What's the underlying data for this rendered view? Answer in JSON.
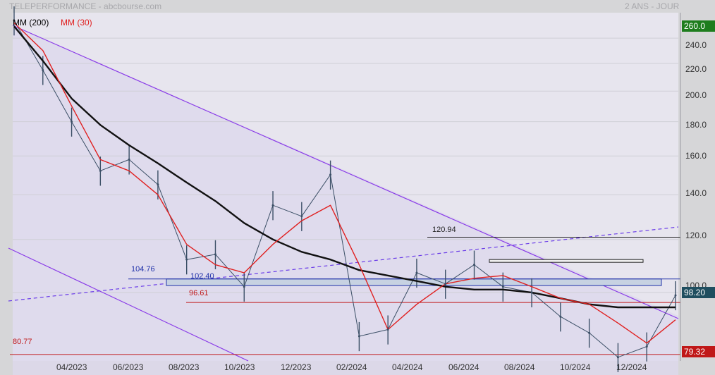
{
  "header": {
    "title": "TELEPERFORMANCE - abcbourse.com",
    "period": "2 ANS - JOUR"
  },
  "legend": {
    "ma200_label": "MM (200)",
    "ma30_label": "MM (30)",
    "ma200_color": "#111111",
    "ma30_color": "#e02020"
  },
  "badges": {
    "top": "260.0",
    "last": "98.20",
    "bottom": "79.32",
    "top_color": "#1e7d1e",
    "last_color": "#1f4e5f",
    "bottom_color": "#c01818"
  },
  "levels": {
    "l120": "120.94",
    "l104": "104.76",
    "l102": "102.40",
    "l96": "96.61",
    "l80": "80.77"
  },
  "chart_data": {
    "type": "line",
    "yscale": "log",
    "ylim": [
      79,
      262
    ],
    "y_ticks": [
      "240.0",
      "220.0",
      "200.0",
      "180.0",
      "160.0",
      "140.0",
      "120.0",
      "100.0"
    ],
    "x_ticks": [
      "04/2023",
      "06/2023",
      "08/2023",
      "10/2023",
      "12/2023",
      "02/2024",
      "04/2024",
      "06/2024",
      "08/2024",
      "10/2024",
      "12/2024"
    ],
    "x": [
      "02/2023",
      "03/2023",
      "04/2023",
      "05/2023",
      "06/2023",
      "07/2023",
      "08/2023",
      "09/2023",
      "10/2023",
      "11/2023",
      "12/2023",
      "01/2024",
      "02/2024",
      "03/2024",
      "04/2024",
      "05/2024",
      "06/2024",
      "07/2024",
      "08/2024",
      "09/2024",
      "10/2024",
      "11/2024",
      "12/2024",
      "01/2025"
    ],
    "series": [
      {
        "name": "TELEPERFORMANCE",
        "values": [
          255,
          215,
          180,
          152,
          158,
          145,
          112,
          114,
          102,
          135,
          130,
          150,
          86,
          88,
          107,
          103,
          110,
          102,
          100,
          92,
          87,
          80,
          83,
          99
        ]
      },
      {
        "name": "MM (200)",
        "values": [
          250,
          222,
          195,
          178,
          166,
          156,
          146,
          137,
          127,
          120,
          115,
          112,
          108,
          106,
          104,
          102,
          101,
          101,
          100,
          98,
          96,
          95,
          95,
          95
        ]
      },
      {
        "name": "MM (30)",
        "values": [
          253,
          230,
          190,
          158,
          152,
          140,
          118,
          110,
          107,
          118,
          128,
          135,
          110,
          88,
          96,
          103,
          105,
          106,
          102,
          98,
          96,
          90,
          84,
          91
        ]
      }
    ]
  }
}
